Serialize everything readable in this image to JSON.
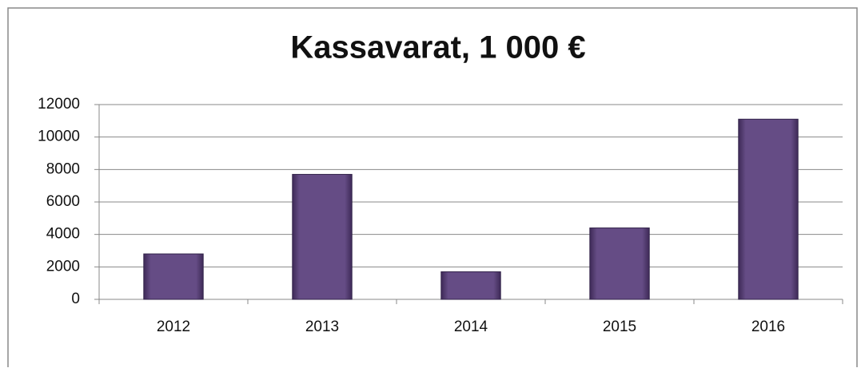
{
  "chart_data": {
    "type": "bar",
    "title": "Kassavarat, 1 000 €",
    "categories": [
      "2012",
      "2013",
      "2014",
      "2015",
      "2016"
    ],
    "values": [
      2800,
      7700,
      1700,
      4400,
      11100
    ],
    "color": "#654c85",
    "ylim": [
      0,
      12000
    ],
    "yticks": [
      0,
      2000,
      4000,
      6000,
      8000,
      10000,
      12000
    ],
    "grid": true
  }
}
